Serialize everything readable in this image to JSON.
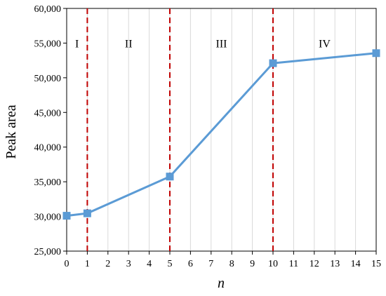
{
  "chart_data": {
    "type": "line",
    "xlabel": "n",
    "ylabel": "Peak area",
    "x_ticks": [
      0,
      1,
      2,
      3,
      4,
      5,
      6,
      7,
      8,
      9,
      10,
      11,
      12,
      13,
      14,
      15
    ],
    "y_ticks": [
      25000,
      30000,
      35000,
      40000,
      45000,
      50000,
      55000,
      60000
    ],
    "y_tick_labels": [
      "25,000",
      "30,000",
      "35,000",
      "40,000",
      "45,000",
      "50,000",
      "55,000",
      "60,000"
    ],
    "xlim": [
      0,
      15
    ],
    "ylim": [
      25000,
      60000
    ],
    "grid": "vertical",
    "series": [
      {
        "x": [
          0,
          1,
          5,
          10,
          15
        ],
        "y": [
          30100,
          30450,
          35750,
          52100,
          53550
        ],
        "color": "#5b9bd5",
        "marker": "square"
      }
    ],
    "vertical_lines": {
      "x": [
        1,
        5,
        10
      ],
      "color": "#c00000",
      "style": "dashed"
    },
    "regions": [
      {
        "label": "I",
        "x": 0.5
      },
      {
        "label": "II",
        "x": 3
      },
      {
        "label": "III",
        "x": 7.5
      },
      {
        "label": "IV",
        "x": 12.5
      }
    ],
    "region_label_y": 55000
  },
  "colors": {
    "series": "#5b9bd5",
    "divider": "#c00000",
    "grid": "#d9d9d9",
    "axis": "#000000"
  }
}
